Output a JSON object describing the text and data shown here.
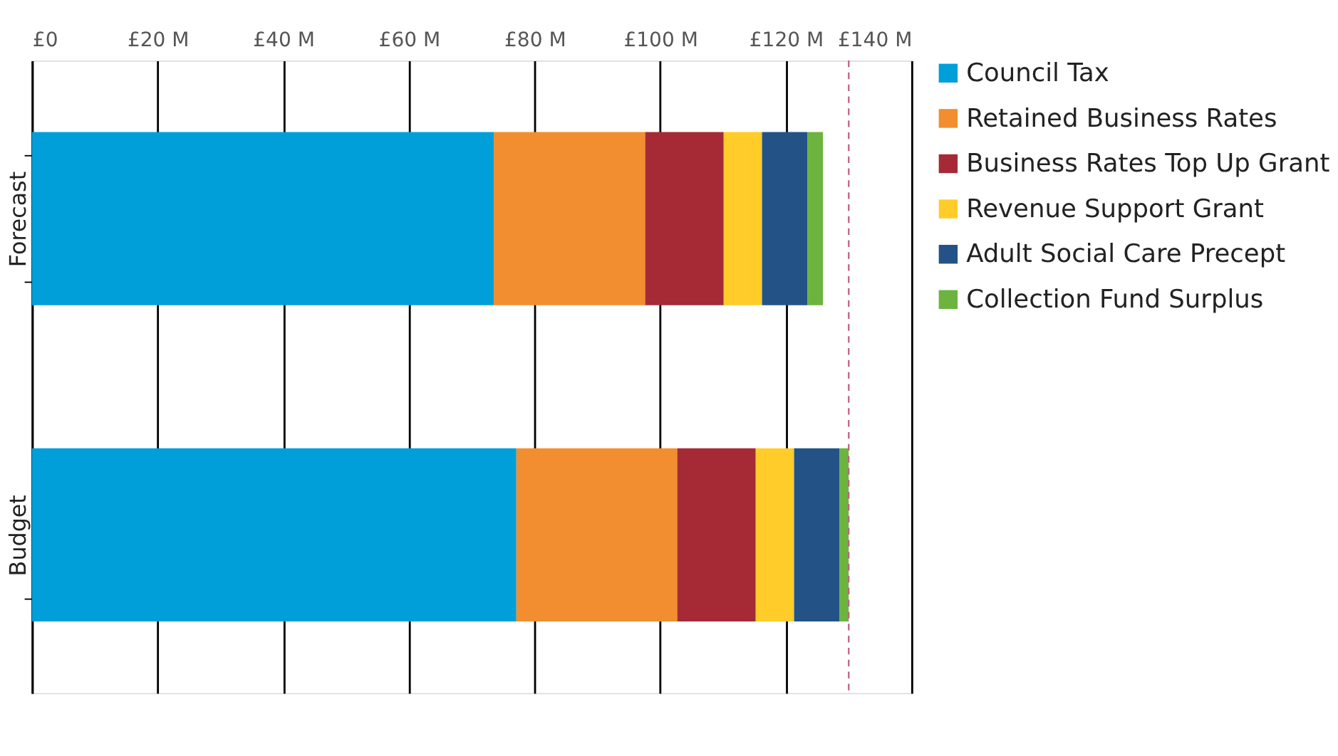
{
  "chart_data": {
    "type": "bar",
    "orientation": "horizontal",
    "stacked": true,
    "categories": [
      "Forecast",
      "Budget"
    ],
    "series": [
      {
        "name": "Council Tax",
        "color": "#009fd9",
        "values": [
          73.5,
          77.1
        ]
      },
      {
        "name": "Retained Business Rates",
        "color": "#f28e2f",
        "values": [
          24.1,
          25.6
        ]
      },
      {
        "name": "Business Rates Top Up Grant",
        "color": "#a52a36",
        "values": [
          12.5,
          12.5
        ]
      },
      {
        "name": "Revenue Support Grant",
        "color": "#ffcc29",
        "values": [
          6.1,
          6.1
        ]
      },
      {
        "name": "Adult Social Care Precept",
        "color": "#235386",
        "values": [
          7.2,
          7.2
        ]
      },
      {
        "name": "Collection Fund Surplus",
        "color": "#6db33f",
        "values": [
          2.5,
          1.5
        ]
      }
    ],
    "xlim": [
      0,
      140
    ],
    "xticks": [
      {
        "value": 0,
        "label": "£0"
      },
      {
        "value": 20,
        "label": "£20 M"
      },
      {
        "value": 40,
        "label": "£40 M"
      },
      {
        "value": 60,
        "label": "£60 M"
      },
      {
        "value": 80,
        "label": "£80 M"
      },
      {
        "value": 100,
        "label": "£100 M"
      },
      {
        "value": 120,
        "label": "£120 M"
      },
      {
        "value": 140,
        "label": "£140 M"
      }
    ],
    "ref_lines": [
      {
        "axis": "x",
        "value": 130,
        "color": "#c0607f",
        "line_style": "dashed"
      }
    ],
    "grid": "x",
    "legend": "right"
  }
}
